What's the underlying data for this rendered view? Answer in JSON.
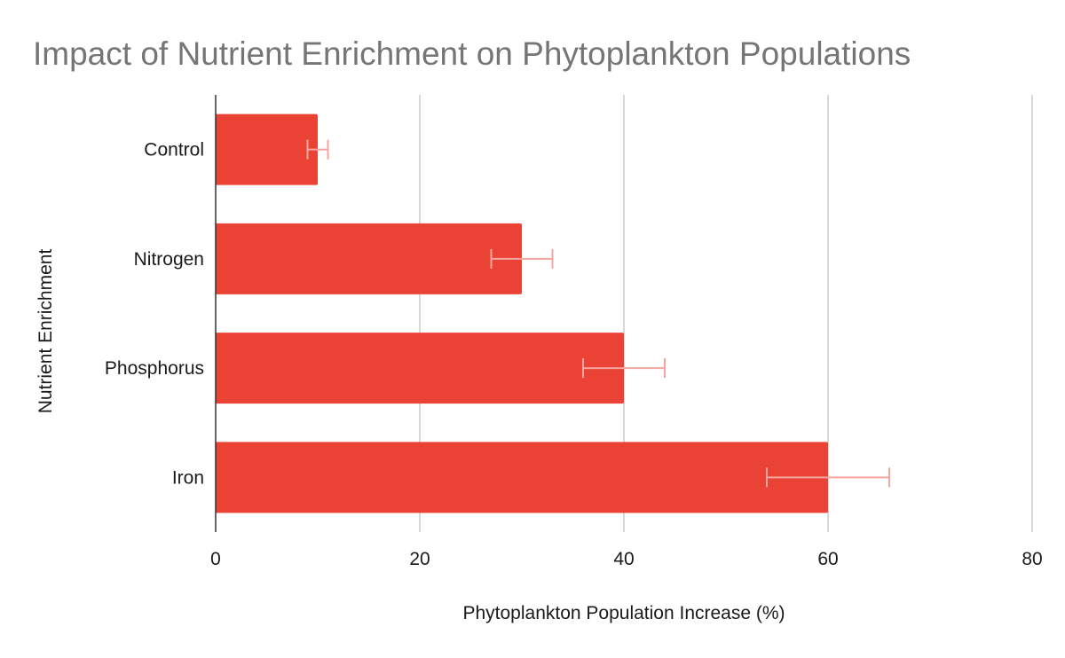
{
  "chart_data": {
    "type": "bar",
    "orientation": "horizontal",
    "title": "Impact of Nutrient Enrichment on Phytoplankton Populations",
    "xlabel": "Phytoplankton Population Increase (%)",
    "ylabel": "Nutrient Enrichment",
    "categories": [
      "Control",
      "Nitrogen",
      "Phosphorus",
      "Iron"
    ],
    "values": [
      10,
      30,
      40,
      60
    ],
    "error": [
      1,
      3,
      4,
      6
    ],
    "xlim": [
      0,
      80
    ],
    "xticks": [
      "0",
      "20",
      "40",
      "60",
      "80"
    ],
    "grid": "vertical",
    "legend": "none",
    "colors": {
      "bar": "#ea4335",
      "error_bar": "#f4a5a0",
      "grid": "#cccccc",
      "axis": "#333333",
      "title": "#757575"
    }
  }
}
